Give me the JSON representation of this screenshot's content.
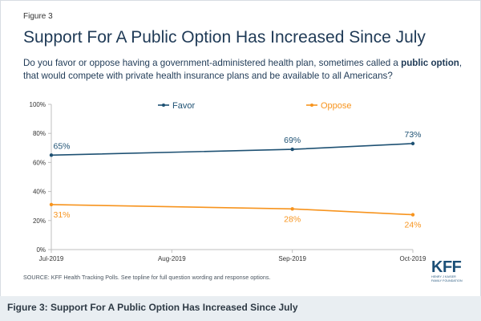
{
  "figure": {
    "label": "Figure 3",
    "title": "Support For A Public Option Has Increased Since July",
    "question_before": "Do you favor or oppose having a government-administered health plan, sometimes called a ",
    "question_bold": "public option",
    "question_after": ", that would compete with private health insurance plans and be available to all Americans?",
    "source": "SOURCE: KFF Health Tracking Polls. See topline for full question wording and response options.",
    "logo_text": "KFF",
    "logo_sub_line1": "HENRY J KAISER",
    "logo_sub_line2": "FAMILY FOUNDATION",
    "caption": "Figure 3: Support For A Public Option Has Increased Since July"
  },
  "colors": {
    "favor": "#1e5173",
    "oppose": "#f7941e",
    "axis": "#bfbfbf",
    "text": "#333333"
  },
  "chart_data": {
    "type": "line",
    "title": "Support For A Public Option Has Increased Since July",
    "x": [
      "2019-07",
      "2019-09",
      "2019-10"
    ],
    "x_tick_labels": [
      "Jul-2019",
      "Aug-2019",
      "Sep-2019",
      "Oct-2019"
    ],
    "y_tick_labels": [
      "0%",
      "20%",
      "40%",
      "60%",
      "80%",
      "100%"
    ],
    "ylim": [
      0,
      100
    ],
    "grid": false,
    "legend_placement": "top",
    "series": [
      {
        "name": "Favor",
        "values": [
          65,
          69,
          73
        ],
        "labels": [
          "65%",
          "69%",
          "73%"
        ]
      },
      {
        "name": "Oppose",
        "values": [
          31,
          28,
          24
        ],
        "labels": [
          "31%",
          "28%",
          "24%"
        ]
      }
    ]
  }
}
